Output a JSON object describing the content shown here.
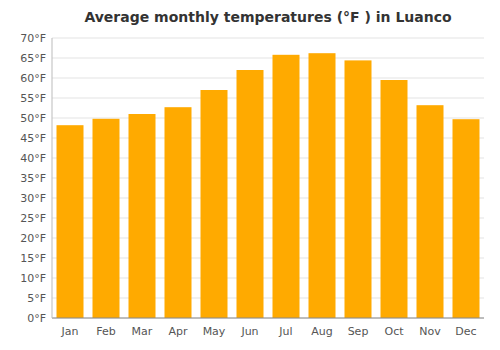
{
  "chart_data": {
    "type": "bar",
    "title": "Average monthly temperatures (°F ) in Luanco",
    "categories": [
      "Jan",
      "Feb",
      "Mar",
      "Apr",
      "May",
      "Jun",
      "Jul",
      "Aug",
      "Sep",
      "Oct",
      "Nov",
      "Dec"
    ],
    "values": [
      48.2,
      49.8,
      51.0,
      52.7,
      57.0,
      62.0,
      65.8,
      66.2,
      64.4,
      59.5,
      53.2,
      49.7
    ],
    "color": "#FFAA00",
    "ylim": [
      0,
      70
    ],
    "yticks": [
      {
        "value": 0,
        "label": "0°F"
      },
      {
        "value": 5,
        "label": "5°F"
      },
      {
        "value": 10,
        "label": "10°F"
      },
      {
        "value": 15,
        "label": "15°F"
      },
      {
        "value": 20,
        "label": "20°F"
      },
      {
        "value": 25,
        "label": "25°F"
      },
      {
        "value": 30,
        "label": "30°F"
      },
      {
        "value": 35,
        "label": "35°F"
      },
      {
        "value": 40,
        "label": "40°F"
      },
      {
        "value": 45,
        "label": "45°F"
      },
      {
        "value": 50,
        "label": "50°F"
      },
      {
        "value": 55,
        "label": "55°F"
      },
      {
        "value": 60,
        "label": "60°F"
      },
      {
        "value": 65,
        "label": "65°F"
      },
      {
        "value": 70,
        "label": "70°F"
      }
    ],
    "grid": true
  }
}
